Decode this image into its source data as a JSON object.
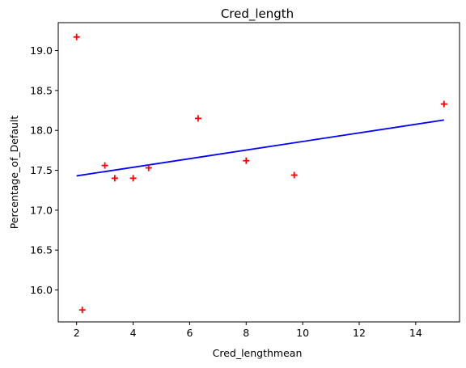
{
  "chart_data": {
    "type": "scatter",
    "title": "Cred_length",
    "xlabel": "Cred_lengthmean",
    "ylabel": "Percentage_of_Default",
    "xlim": [
      1.35,
      15.55
    ],
    "ylim": [
      15.6,
      19.35
    ],
    "xticks": [
      2,
      4,
      6,
      8,
      10,
      12,
      14
    ],
    "xtick_labels": [
      "2",
      "4",
      "6",
      "8",
      "10",
      "12",
      "14"
    ],
    "yticks": [
      16.0,
      16.5,
      17.0,
      17.5,
      18.0,
      18.5,
      19.0
    ],
    "ytick_labels": [
      "16.0",
      "16.5",
      "17.0",
      "17.5",
      "18.0",
      "18.5",
      "19.0"
    ],
    "grid": false,
    "points": {
      "marker": "+",
      "color": "#ff0000",
      "x": [
        2.0,
        2.2,
        3.0,
        3.35,
        4.0,
        4.55,
        6.3,
        8.0,
        9.7,
        15.0
      ],
      "y": [
        19.17,
        15.75,
        17.56,
        17.4,
        17.4,
        17.53,
        18.15,
        17.62,
        17.44,
        18.33
      ]
    },
    "fit_line": {
      "color": "#0000ff",
      "x": [
        2.0,
        15.0
      ],
      "y": [
        17.43,
        18.13
      ]
    }
  }
}
